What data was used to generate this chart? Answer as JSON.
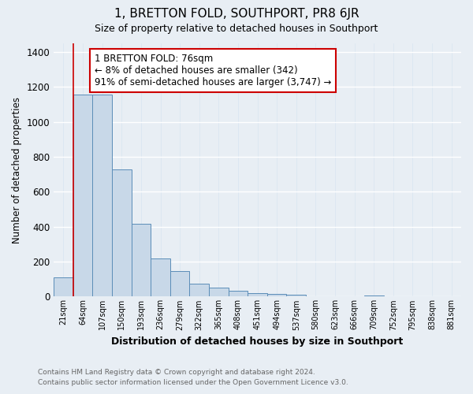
{
  "title": "1, BRETTON FOLD, SOUTHPORT, PR8 6JR",
  "subtitle": "Size of property relative to detached houses in Southport",
  "xlabel": "Distribution of detached houses by size in Southport",
  "ylabel": "Number of detached properties",
  "footer_lines": [
    "Contains HM Land Registry data © Crown copyright and database right 2024.",
    "Contains public sector information licensed under the Open Government Licence v3.0."
  ],
  "bin_labels": [
    "21sqm",
    "64sqm",
    "107sqm",
    "150sqm",
    "193sqm",
    "236sqm",
    "279sqm",
    "322sqm",
    "365sqm",
    "408sqm",
    "451sqm",
    "494sqm",
    "537sqm",
    "580sqm",
    "623sqm",
    "666sqm",
    "709sqm",
    "752sqm",
    "795sqm",
    "838sqm",
    "881sqm"
  ],
  "bar_values": [
    110,
    1155,
    1155,
    730,
    415,
    220,
    148,
    75,
    50,
    33,
    20,
    15,
    10,
    0,
    0,
    0,
    8,
    0,
    0,
    0,
    3
  ],
  "bar_color": "#c8d8e8",
  "bar_edge_color": "#5b8db8",
  "annotation_box_text": "1 BRETTON FOLD: 76sqm\n← 8% of detached houses are smaller (342)\n91% of semi-detached houses are larger (3,747) →",
  "annotation_box_edge_color": "#cc0000",
  "red_line_x": 1.5,
  "ylim": [
    0,
    1450
  ],
  "yticks": [
    0,
    200,
    400,
    600,
    800,
    1000,
    1200,
    1400
  ],
  "background_color": "#e8eef4",
  "axes_background_color": "#e8eef4",
  "grid_color": "#d0dce8",
  "title_fontsize": 11,
  "subtitle_fontsize": 9,
  "annotation_fontsize": 8.5
}
